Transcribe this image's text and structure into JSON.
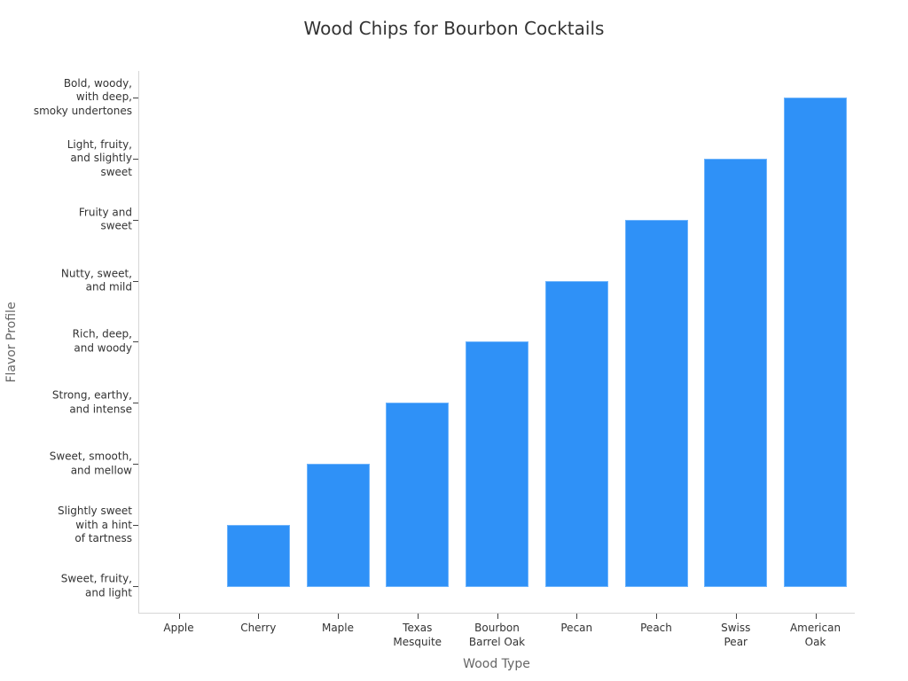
{
  "chart_data": {
    "type": "bar",
    "title": "Wood Chips for Bourbon Cocktails",
    "xlabel": "Wood Type",
    "ylabel": "Flavor Profile",
    "categories": [
      "Apple",
      "Cherry",
      "Maple",
      "Texas\nMesquite",
      "Bourbon\nBarrel Oak",
      "Pecan",
      "Peach",
      "Swiss\nPear",
      "American\nOak"
    ],
    "y_categories": [
      "Sweet, fruity,\nand light",
      "Slightly sweet\nwith a hint\nof tartness",
      "Sweet, smooth,\nand mellow",
      "Strong, earthy,\nand intense",
      "Rich, deep,\nand woody",
      "Nutty, sweet,\nand mild",
      "Fruity and\nsweet",
      "Light, fruity,\nand slightly\nsweet",
      "Bold, woody,\nwith deep,\nsmoky undertones"
    ],
    "values": [
      0,
      1,
      2,
      3,
      4,
      5,
      6,
      7,
      8
    ],
    "value_labels": [
      "Sweet, fruity, and light",
      "Slightly sweet with a hint of tartness",
      "Sweet, smooth, and mellow",
      "Strong, earthy, and intense",
      "Rich, deep, and woody",
      "Nutty, sweet, and mild",
      "Fruity and sweet",
      "Light, fruity, and slightly sweet",
      "Bold, woody, with deep, smoky undertones"
    ],
    "bar_color": "#2f91f7",
    "grid": false,
    "legend": "none",
    "ylim": [
      -0.45,
      8.45
    ]
  }
}
